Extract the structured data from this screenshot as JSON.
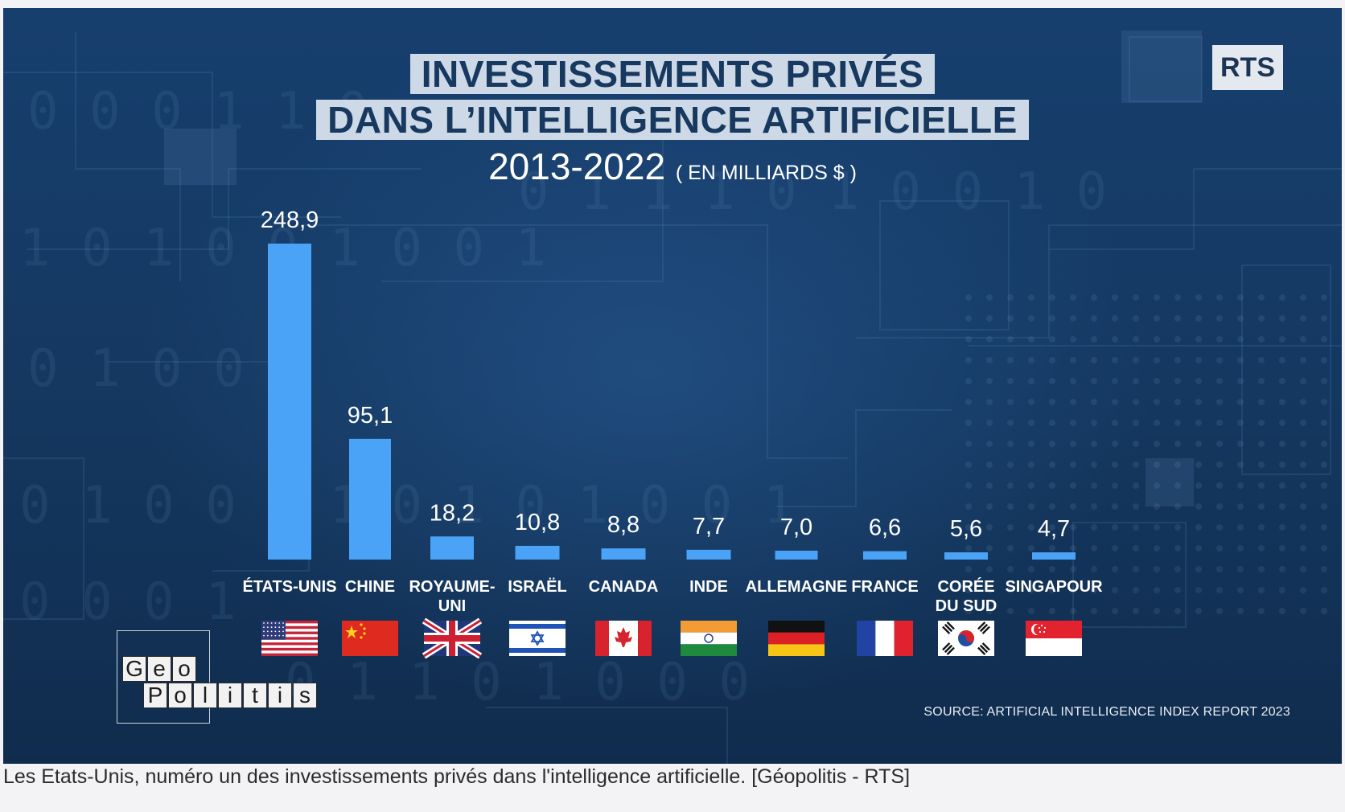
{
  "header": {
    "title_line1": "INVESTISSEMENTS PRIVÉS",
    "title_line2": "DANS L’INTELLIGENCE ARTIFICIELLE",
    "period": "2013-2022",
    "unit": "( EN MILLIARDS $ )"
  },
  "brand": {
    "badge": "RTS"
  },
  "logo": {
    "line1": [
      "G",
      "e",
      "o"
    ],
    "line2": [
      "P",
      "o",
      "l",
      "i",
      "t",
      "i",
      "s"
    ]
  },
  "source": "SOURCE: ARTIFICIAL INTELLIGENCE INDEX REPORT 2023",
  "caption": "Les Etats-Unis, numéro un des investissements privés dans l'intelligence artificielle. [Géopolitis - RTS]",
  "colors": {
    "bar": "#4aa3f6",
    "background": "#153a63",
    "title_band": "#cdd9e6",
    "title_text": "#17385f"
  },
  "chart_data": {
    "type": "bar",
    "title": "INVESTISSEMENTS PRIVÉS DANS L’INTELLIGENCE ARTIFICIELLE",
    "subtitle": "2013-2022 ( EN MILLIARDS $ )",
    "categories": [
      {
        "label": [
          "ÉTATS-UNIS"
        ],
        "flag": "us-flag-icon"
      },
      {
        "label": [
          "CHINE"
        ],
        "flag": "china-flag-icon"
      },
      {
        "label": [
          "ROYAUME-",
          "UNI"
        ],
        "flag": "uk-flag-icon"
      },
      {
        "label": [
          "ISRAËL"
        ],
        "flag": "israel-flag-icon"
      },
      {
        "label": [
          "CANADA"
        ],
        "flag": "canada-flag-icon"
      },
      {
        "label": [
          "INDE"
        ],
        "flag": "india-flag-icon"
      },
      {
        "label": [
          "ALLEMAGNE"
        ],
        "flag": "germany-flag-icon"
      },
      {
        "label": [
          "FRANCE"
        ],
        "flag": "france-flag-icon"
      },
      {
        "label": [
          "CORÉE",
          "DU SUD"
        ],
        "flag": "south-korea-flag-icon"
      },
      {
        "label": [
          "SINGAPOUR"
        ],
        "flag": "singapore-flag-icon"
      }
    ],
    "values": [
      248.9,
      95.1,
      18.2,
      10.8,
      8.8,
      7.7,
      7.0,
      6.6,
      5.6,
      4.7
    ],
    "value_labels": [
      "248,9",
      "95,1",
      "18,2",
      "10,8",
      "8,8",
      "7,7",
      "7,0",
      "6,6",
      "5,6",
      "4,7"
    ],
    "xlabel": "",
    "ylabel": "",
    "ylim": [
      0,
      250
    ],
    "grid": false,
    "legend": "none"
  }
}
